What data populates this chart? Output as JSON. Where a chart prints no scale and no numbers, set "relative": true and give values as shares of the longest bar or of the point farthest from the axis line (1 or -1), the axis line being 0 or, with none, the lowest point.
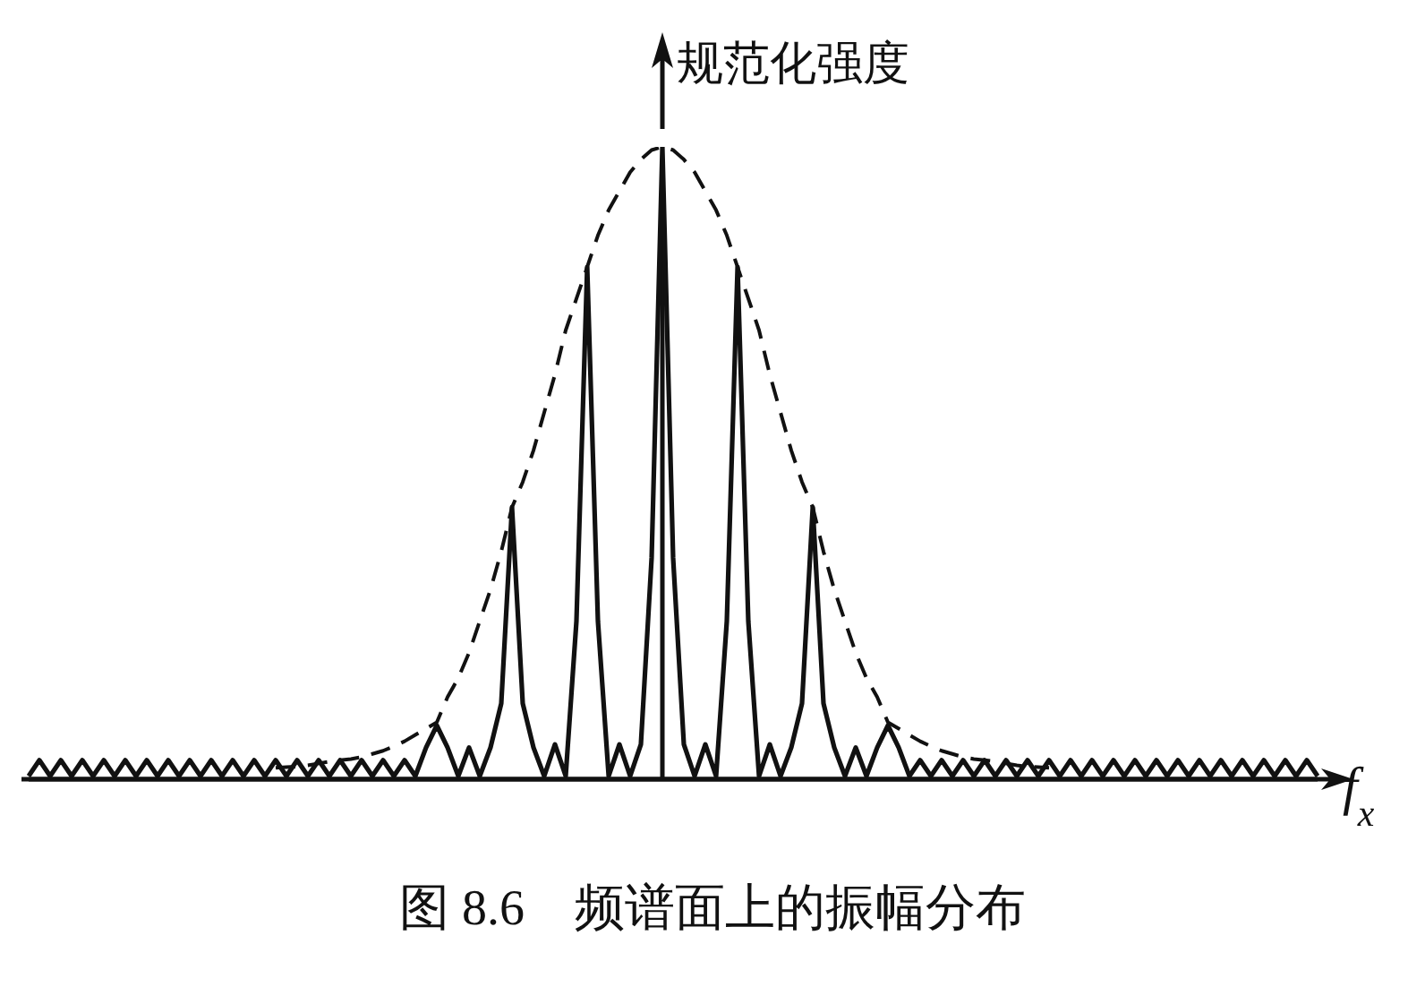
{
  "chart_data": {
    "type": "line",
    "title": "图 8.6　频谱面上的振幅分布",
    "ylabel": "规范化强度",
    "xlabel": "f$_{x}$",
    "relative": true,
    "categories": [
      null,
      null,
      null,
      null,
      null,
      null,
      null,
      null,
      null,
      null,
      null,
      null,
      null,
      null,
      null,
      null,
      null,
      null,
      null,
      null,
      null,
      null,
      null,
      null,
      null,
      null,
      null,
      null,
      null,
      null,
      null,
      null,
      null,
      null,
      null,
      null,
      null,
      null,
      null,
      null,
      null,
      null,
      null,
      null,
      null,
      null,
      null,
      null,
      null,
      null,
      null,
      null,
      null,
      null,
      null,
      null,
      null,
      null,
      null,
      null,
      null,
      null,
      null,
      null,
      null,
      null,
      null,
      null,
      null,
      null,
      null,
      null,
      null,
      null,
      null,
      null,
      null,
      null,
      null,
      null,
      null,
      null,
      null,
      null,
      null,
      null,
      null,
      null,
      null,
      null,
      null,
      null,
      null,
      null,
      null,
      null,
      null,
      null,
      null,
      null,
      null,
      null,
      null,
      null,
      null,
      null,
      null,
      null,
      null,
      null,
      null,
      null,
      null,
      null,
      null,
      null,
      null,
      null,
      null,
      null,
      null
    ],
    "series": [
      {
        "color": "#111111",
        "line_style": "solid",
        "values": [
          0.005,
          0.03,
          0.005,
          0.03,
          0.005,
          0.03,
          0.005,
          0.03,
          0.005,
          0.03,
          0.005,
          0.03,
          0.005,
          0.03,
          0.005,
          0.03,
          0.005,
          0.03,
          0.005,
          0.03,
          0.005,
          0.03,
          0.005,
          0.03,
          0.005,
          0.03,
          0.005,
          0.03,
          0.005,
          0.03,
          0.005,
          0.03,
          0.005,
          0.03,
          0.005,
          0.03,
          0.005,
          0.05,
          0.085,
          0.05,
          0.005,
          0.05,
          0.005,
          0.05,
          0.12,
          0.43,
          0.12,
          0.05,
          0.005,
          0.055,
          0.005,
          0.25,
          0.81,
          0.25,
          0.005,
          0.055,
          0.005,
          0.055,
          0.35,
          1,
          0.35,
          0.055,
          0.005,
          0.055,
          0.005,
          0.25,
          0.81,
          0.25,
          0.005,
          0.055,
          0.005,
          0.05,
          0.12,
          0.43,
          0.12,
          0.05,
          0.005,
          0.05,
          0.005,
          0.05,
          0.085,
          0.05,
          0.005,
          0.03,
          0.005,
          0.03,
          0.005,
          0.03,
          0.005,
          0.03,
          0.005,
          0.03,
          0.005,
          0.03,
          0.005,
          0.03,
          0.005,
          0.03,
          0.005,
          0.03,
          0.005,
          0.03,
          0.005,
          0.03,
          0.005,
          0.03,
          0.005,
          0.03,
          0.005,
          0.03,
          0.005,
          0.03,
          0.005,
          0.03,
          0.005,
          0.03,
          0.005,
          0.03,
          0.005,
          0.03,
          0.005
        ]
      },
      {
        "color": "#111111",
        "line_style": "dashed",
        "values": [
          null,
          null,
          null,
          null,
          null,
          null,
          null,
          null,
          null,
          null,
          null,
          null,
          null,
          null,
          null,
          null,
          null,
          null,
          null,
          null,
          null,
          null,
          null,
          0.018,
          0.019,
          0.02,
          0.022,
          0.025,
          0.028,
          0.03,
          0.032,
          0.035,
          0.04,
          0.045,
          0.052,
          0.06,
          0.07,
          0.08,
          0.09,
          0.13,
          0.16,
          0.2,
          0.25,
          0.3,
          0.36,
          0.43,
          0.47,
          0.52,
          0.58,
          0.64,
          0.71,
          0.76,
          0.81,
          0.86,
          0.9,
          0.93,
          0.96,
          0.98,
          0.995,
          1,
          0.995,
          0.98,
          0.96,
          0.93,
          0.9,
          0.86,
          0.81,
          0.76,
          0.71,
          0.64,
          0.58,
          0.52,
          0.47,
          0.43,
          0.36,
          0.3,
          0.25,
          0.2,
          0.16,
          0.13,
          0.09,
          0.08,
          0.07,
          0.06,
          0.052,
          0.045,
          0.04,
          0.035,
          0.032,
          0.03,
          0.028,
          0.025,
          0.022,
          0.02,
          0.019,
          0.018,
          null,
          null,
          null,
          null,
          null,
          null,
          null,
          null,
          null,
          null,
          null,
          null,
          null,
          null,
          null,
          null,
          null,
          null,
          null,
          null,
          null,
          null,
          null,
          null,
          null
        ]
      }
    ]
  }
}
